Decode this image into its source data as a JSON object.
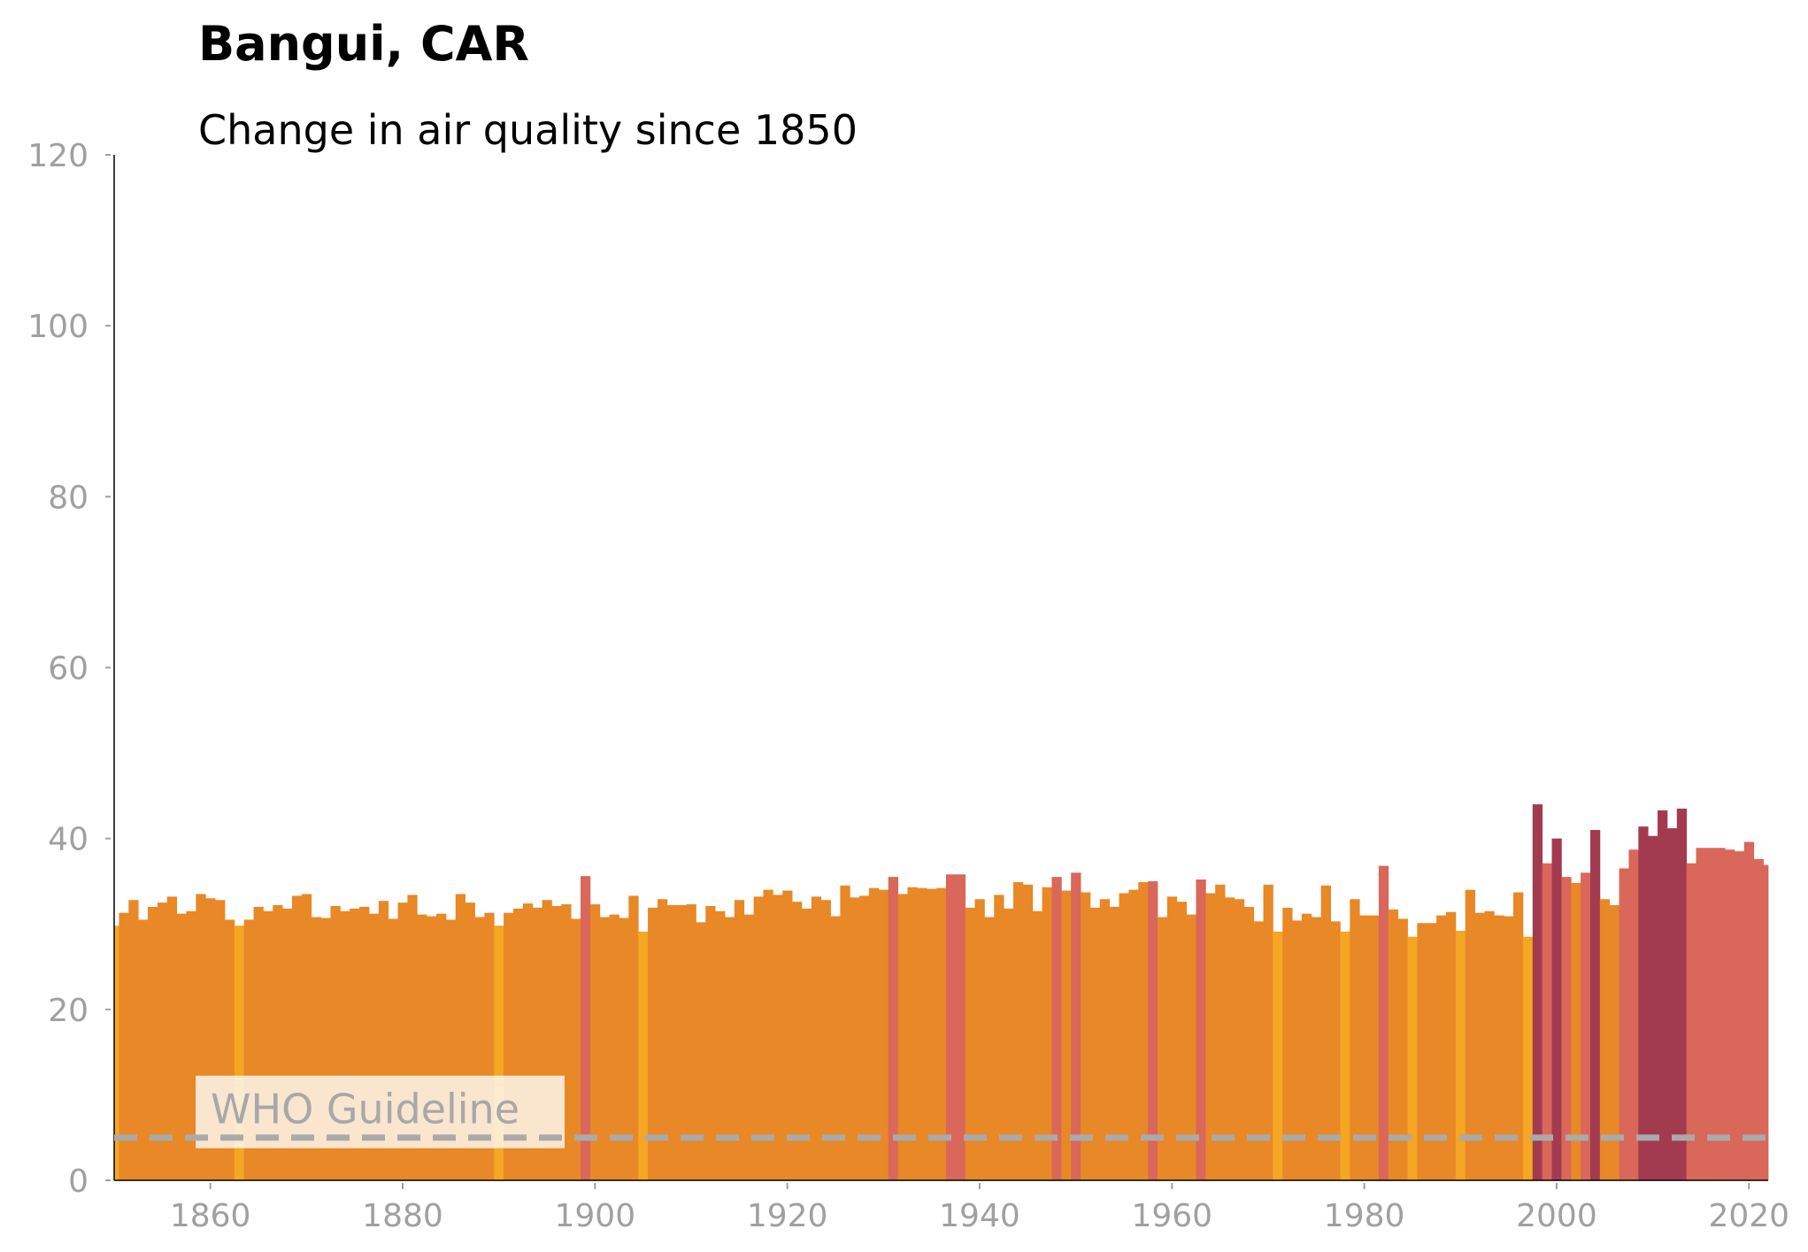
{
  "chart_data": {
    "type": "bar",
    "title": "Bangui, CAR",
    "subtitle": "Change in air quality since 1850",
    "xlabel": "",
    "ylabel": "",
    "xlim": [
      1850,
      2022
    ],
    "ylim": [
      0,
      120
    ],
    "x_ticks": [
      1860,
      1880,
      1900,
      1920,
      1940,
      1960,
      1980,
      2000,
      2020
    ],
    "y_ticks": [
      0,
      20,
      40,
      60,
      80,
      100,
      120
    ],
    "grid": false,
    "guideline": {
      "label": "WHO Guideline",
      "value": 5,
      "color": "#aaaaaa"
    },
    "color_scale": {
      "low": "#f5a623",
      "mid": "#e88827",
      "high": "#d9675a",
      "very_high": "#a33b50"
    },
    "x": [
      1850,
      1851,
      1852,
      1853,
      1854,
      1855,
      1856,
      1857,
      1858,
      1859,
      1860,
      1861,
      1862,
      1863,
      1864,
      1865,
      1866,
      1867,
      1868,
      1869,
      1870,
      1871,
      1872,
      1873,
      1874,
      1875,
      1876,
      1877,
      1878,
      1879,
      1880,
      1881,
      1882,
      1883,
      1884,
      1885,
      1886,
      1887,
      1888,
      1889,
      1890,
      1891,
      1892,
      1893,
      1894,
      1895,
      1896,
      1897,
      1898,
      1899,
      1900,
      1901,
      1902,
      1903,
      1904,
      1905,
      1906,
      1907,
      1908,
      1909,
      1910,
      1911,
      1912,
      1913,
      1914,
      1915,
      1916,
      1917,
      1918,
      1919,
      1920,
      1921,
      1922,
      1923,
      1924,
      1925,
      1926,
      1927,
      1928,
      1929,
      1930,
      1931,
      1932,
      1933,
      1934,
      1935,
      1936,
      1937,
      1938,
      1939,
      1940,
      1941,
      1942,
      1943,
      1944,
      1945,
      1946,
      1947,
      1948,
      1949,
      1950,
      1951,
      1952,
      1953,
      1954,
      1955,
      1956,
      1957,
      1958,
      1959,
      1960,
      1961,
      1962,
      1963,
      1964,
      1965,
      1966,
      1967,
      1968,
      1969,
      1970,
      1971,
      1972,
      1973,
      1974,
      1975,
      1976,
      1977,
      1978,
      1979,
      1980,
      1981,
      1982,
      1983,
      1984,
      1985,
      1986,
      1987,
      1988,
      1989,
      1990,
      1991,
      1992,
      1993,
      1994,
      1995,
      1996,
      1997,
      1998,
      1999,
      2000,
      2001,
      2002,
      2003,
      2004,
      2005,
      2006,
      2007,
      2008,
      2009,
      2010,
      2011,
      2012,
      2013,
      2014,
      2015,
      2016,
      2017,
      2018,
      2019,
      2020,
      2021,
      2022
    ],
    "values": [
      29.8,
      31.3,
      32.8,
      30.5,
      32.0,
      32.5,
      33.2,
      31.2,
      31.5,
      33.5,
      33.0,
      32.8,
      30.5,
      29.8,
      30.5,
      32.0,
      31.5,
      32.2,
      31.8,
      33.3,
      33.5,
      30.8,
      30.7,
      32.1,
      31.5,
      31.8,
      32.0,
      31.2,
      32.7,
      30.6,
      32.5,
      33.4,
      31.1,
      30.9,
      31.2,
      30.5,
      33.5,
      32.5,
      30.8,
      31.3,
      29.8,
      31.3,
      31.8,
      32.4,
      31.9,
      32.8,
      32.1,
      32.3,
      30.6,
      35.6,
      32.3,
      30.8,
      31.1,
      30.7,
      33.3,
      29.1,
      31.9,
      32.9,
      32.2,
      32.2,
      32.3,
      30.2,
      32.1,
      31.5,
      30.8,
      32.8,
      31.1,
      33.2,
      34.0,
      33.4,
      33.9,
      32.6,
      31.8,
      33.2,
      32.8,
      30.9,
      34.5,
      33.1,
      33.3,
      34.2,
      34.0,
      35.5,
      33.5,
      34.3,
      34.2,
      34.1,
      34.2,
      35.8,
      35.8,
      31.9,
      32.9,
      30.8,
      33.4,
      31.8,
      34.9,
      34.6,
      31.5,
      34.3,
      35.5,
      33.9,
      36.0,
      33.7,
      31.9,
      32.9,
      32.0,
      33.6,
      34.0,
      34.9,
      35.0,
      30.8,
      33.2,
      32.6,
      31.1,
      35.2,
      33.6,
      34.6,
      33.1,
      32.9,
      32.0,
      30.3,
      34.6,
      29.1,
      31.9,
      30.4,
      31.2,
      30.8,
      34.5,
      30.3,
      29.1,
      32.9,
      31.0,
      31.0,
      36.8,
      31.7,
      30.6,
      28.5,
      30.1,
      30.1,
      31.0,
      31.4,
      29.2,
      34.0,
      31.3,
      31.5,
      31.0,
      30.9,
      33.7,
      28.5,
      44.0,
      37.1,
      40.0,
      35.5,
      34.8,
      36.0,
      41.0,
      32.9,
      32.2,
      36.5,
      38.7,
      41.4,
      40.3,
      43.3,
      41.2,
      43.5,
      37.1,
      38.9,
      38.9,
      38.9,
      38.7,
      38.5,
      39.6,
      37.6,
      36.9
    ]
  }
}
